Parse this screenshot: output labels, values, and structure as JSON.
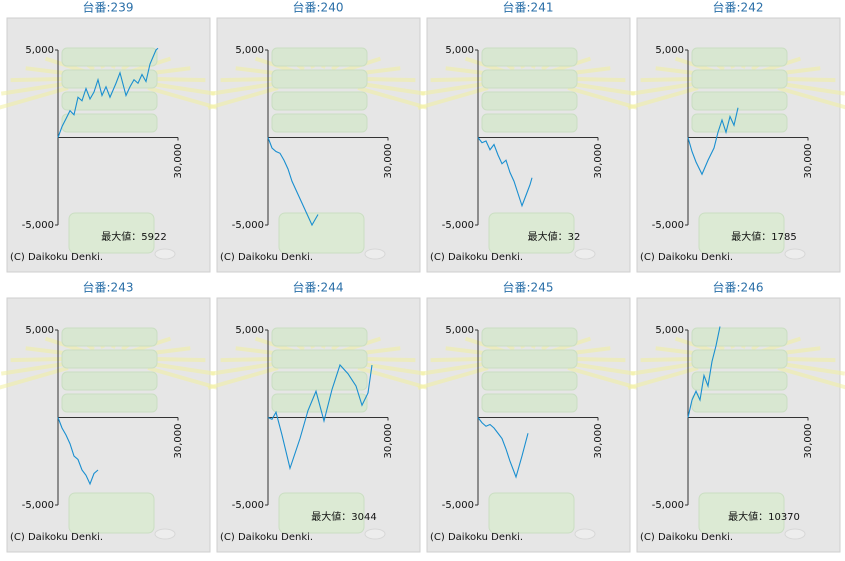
{
  "chart_data": [
    {
      "type": "line",
      "title": "台番:239",
      "annotation": "最大値：5922",
      "credit": "(C) Daikoku Denki.",
      "xlim": [
        0,
        30000
      ],
      "ylim": [
        -5000,
        5000
      ],
      "xticks": [
        {
          "value": 30000,
          "label": "30,000"
        }
      ],
      "yticks": [
        {
          "value": 5000,
          "label": "5,000"
        },
        {
          "value": -5000,
          "label": "-5,000"
        }
      ],
      "x": [
        0,
        1000,
        2000,
        3000,
        4000,
        5000,
        6000,
        7000,
        8000,
        9000,
        10000,
        11000,
        12000,
        13000,
        14500,
        15500,
        17000,
        18000,
        19000,
        20000,
        21000,
        22000,
        23000,
        24500,
        25000
      ],
      "series": [
        {
          "color": "#1a8fd0",
          "values": [
            0,
            620,
            1070,
            1530,
            1300,
            2300,
            2100,
            2800,
            2200,
            2600,
            3300,
            2400,
            2900,
            2300,
            3100,
            3700,
            2400,
            2900,
            3300,
            3100,
            3600,
            3200,
            4200,
            5000,
            5100
          ]
        }
      ]
    },
    {
      "type": "line",
      "title": "台番:240",
      "credit": "(C) Daikoku Denki.",
      "xlim": [
        0,
        30000
      ],
      "ylim": [
        -5000,
        5000
      ],
      "xticks": [
        {
          "value": 30000,
          "label": "30,000"
        }
      ],
      "yticks": [
        {
          "value": 5000,
          "label": "5,000"
        },
        {
          "value": -5000,
          "label": "-5,000"
        }
      ],
      "x": [
        0,
        1000,
        2000,
        3000,
        4000,
        5000,
        6000,
        7000,
        8000,
        9000,
        10000,
        11000,
        11500,
        12500
      ],
      "series": [
        {
          "color": "#1a8fd0",
          "values": [
            0,
            -600,
            -800,
            -900,
            -1300,
            -1800,
            -2500,
            -3000,
            -3500,
            -4000,
            -4500,
            -5000,
            -4800,
            -4400
          ]
        }
      ]
    },
    {
      "type": "line",
      "title": "台番:241",
      "annotation": "最大値：32",
      "credit": "(C) Daikoku Denki.",
      "xlim": [
        0,
        30000
      ],
      "ylim": [
        -5000,
        5000
      ],
      "xticks": [
        {
          "value": 30000,
          "label": "30,000"
        }
      ],
      "yticks": [
        {
          "value": 5000,
          "label": "5,000"
        },
        {
          "value": -5000,
          "label": "-5,000"
        }
      ],
      "x": [
        0,
        1000,
        2000,
        3000,
        4000,
        5000,
        6000,
        7000,
        8000,
        9000,
        10000,
        11000,
        12000,
        13000,
        13500
      ],
      "series": [
        {
          "color": "#1a8fd0",
          "values": [
            0,
            -300,
            -200,
            -700,
            -400,
            -1000,
            -1500,
            -1300,
            -2000,
            -2500,
            -3200,
            -3900,
            -3300,
            -2700,
            -2300
          ]
        }
      ]
    },
    {
      "type": "line",
      "title": "台番:242",
      "annotation": "最大値：1785",
      "credit": "(C) Daikoku Denki.",
      "xlim": [
        0,
        30000
      ],
      "ylim": [
        -5000,
        5000
      ],
      "xticks": [
        {
          "value": 30000,
          "label": "30,000"
        }
      ],
      "yticks": [
        {
          "value": 5000,
          "label": "5,000"
        },
        {
          "value": -5000,
          "label": "-5,000"
        }
      ],
      "x": [
        0,
        1000,
        2000,
        3500,
        5000,
        6500,
        7500,
        8500,
        9500,
        10500,
        11500,
        12500
      ],
      "series": [
        {
          "color": "#1a8fd0",
          "values": [
            0,
            -800,
            -1400,
            -2100,
            -1300,
            -600,
            300,
            1000,
            300,
            1200,
            700,
            1700
          ]
        }
      ]
    },
    {
      "type": "line",
      "title": "台番:243",
      "credit": "(C) Daikoku Denki.",
      "xlim": [
        0,
        30000
      ],
      "ylim": [
        -5000,
        5000
      ],
      "xticks": [
        {
          "value": 30000,
          "label": "30,000"
        }
      ],
      "yticks": [
        {
          "value": 5000,
          "label": "5,000"
        },
        {
          "value": -5000,
          "label": "-5,000"
        }
      ],
      "x": [
        0,
        1000,
        2000,
        3000,
        4000,
        5000,
        6000,
        7000,
        8000,
        9000,
        10000
      ],
      "series": [
        {
          "color": "#1a8fd0",
          "values": [
            0,
            -600,
            -1000,
            -1500,
            -2200,
            -2400,
            -3000,
            -3300,
            -3800,
            -3200,
            -3000
          ]
        }
      ]
    },
    {
      "type": "line",
      "title": "台番:244",
      "annotation": "最大値：3044",
      "credit": "(C) Daikoku Denki.",
      "xlim": [
        0,
        30000
      ],
      "ylim": [
        -5000,
        5000
      ],
      "xticks": [
        {
          "value": 30000,
          "label": "30,000"
        }
      ],
      "yticks": [
        {
          "value": 5000,
          "label": "5,000"
        },
        {
          "value": -5000,
          "label": "-5,000"
        }
      ],
      "x": [
        0,
        1000,
        2000,
        3500,
        5500,
        8000,
        10000,
        12000,
        14000,
        16000,
        18000,
        20000,
        22000,
        23500,
        25000,
        26000
      ],
      "series": [
        {
          "color": "#1a8fd0",
          "values": [
            0,
            -100,
            300,
            -1000,
            -2900,
            -1200,
            400,
            1500,
            -200,
            1600,
            3000,
            2500,
            1800,
            700,
            1400,
            3000
          ]
        }
      ]
    },
    {
      "type": "line",
      "title": "台番:245",
      "credit": "(C) Daikoku Denki.",
      "xlim": [
        0,
        30000
      ],
      "ylim": [
        -5000,
        5000
      ],
      "xticks": [
        {
          "value": 30000,
          "label": "30,000"
        }
      ],
      "yticks": [
        {
          "value": 5000,
          "label": "5,000"
        },
        {
          "value": -5000,
          "label": "-5,000"
        }
      ],
      "x": [
        0,
        1000,
        2000,
        3000,
        4000,
        5000,
        6000,
        7000,
        8000,
        9500,
        11000,
        12500
      ],
      "series": [
        {
          "color": "#1a8fd0",
          "values": [
            0,
            -300,
            -500,
            -400,
            -600,
            -900,
            -1200,
            -1800,
            -2500,
            -3400,
            -2200,
            -900
          ]
        }
      ]
    },
    {
      "type": "line",
      "title": "台番:246",
      "annotation": "最大値：10370",
      "credit": "(C) Daikoku Denki.",
      "xlim": [
        0,
        30000
      ],
      "ylim": [
        -5000,
        5000
      ],
      "xticks": [
        {
          "value": 30000,
          "label": "30,000"
        }
      ],
      "yticks": [
        {
          "value": 5000,
          "label": "5,000"
        },
        {
          "value": -5000,
          "label": "-5,000"
        }
      ],
      "x": [
        0,
        1000,
        2000,
        3000,
        4000,
        5000,
        6000,
        7000,
        8000
      ],
      "series": [
        {
          "color": "#1a8fd0",
          "values": [
            0,
            1000,
            1500,
            1000,
            2400,
            1800,
            3200,
            4100,
            5200
          ]
        }
      ]
    }
  ]
}
